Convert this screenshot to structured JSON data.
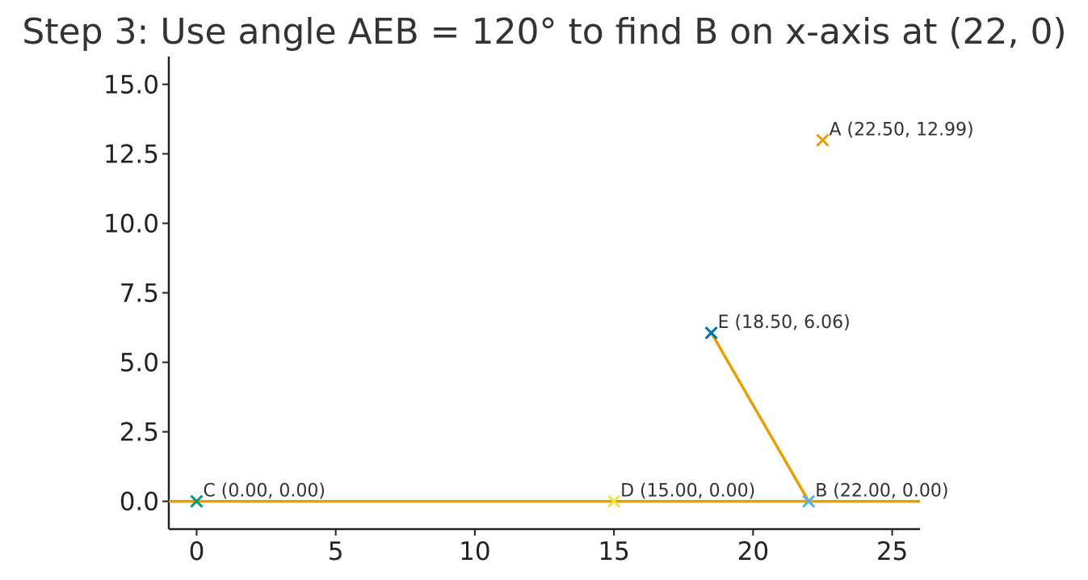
{
  "chart_data": {
    "type": "scatter",
    "title": "Step 3: Use angle AEB = 120° to find B on x-axis at (22, 0)",
    "xlabel": "",
    "ylabel": "",
    "xlim": [
      -1,
      26
    ],
    "ylim": [
      -1,
      16
    ],
    "x_ticks": [
      0,
      5,
      10,
      15,
      20,
      25
    ],
    "x_tick_labels": [
      "0",
      "5",
      "10",
      "15",
      "20",
      "25"
    ],
    "y_ticks": [
      0,
      2.5,
      5,
      7.5,
      10,
      12.5,
      15
    ],
    "y_tick_labels": [
      "0.0",
      "2.5",
      "5.0",
      "7.5",
      "10.0",
      "12.5",
      "15.0"
    ],
    "grid": false,
    "lines": [
      {
        "x": [
          -1,
          26
        ],
        "y": [
          0,
          0
        ],
        "color": "#E69F00"
      },
      {
        "x": [
          18.5,
          22
        ],
        "y": [
          6.06,
          0
        ],
        "color": "#E69F00"
      }
    ],
    "points": [
      {
        "x": 22.5,
        "y": 12.99,
        "label": "A (22.50, 12.99)",
        "color": "#E69F00"
      },
      {
        "x": 18.5,
        "y": 6.06,
        "label": "E (18.50, 6.06)",
        "color": "#0072B2"
      },
      {
        "x": 0,
        "y": 0,
        "label": "C (0.00, 0.00)",
        "color": "#009E73"
      },
      {
        "x": 15,
        "y": 0,
        "label": "D (15.00, 0.00)",
        "color": "#F0E442"
      },
      {
        "x": 22,
        "y": 0,
        "label": "B (22.00, 0.00)",
        "color": "#56B4E9"
      }
    ]
  }
}
